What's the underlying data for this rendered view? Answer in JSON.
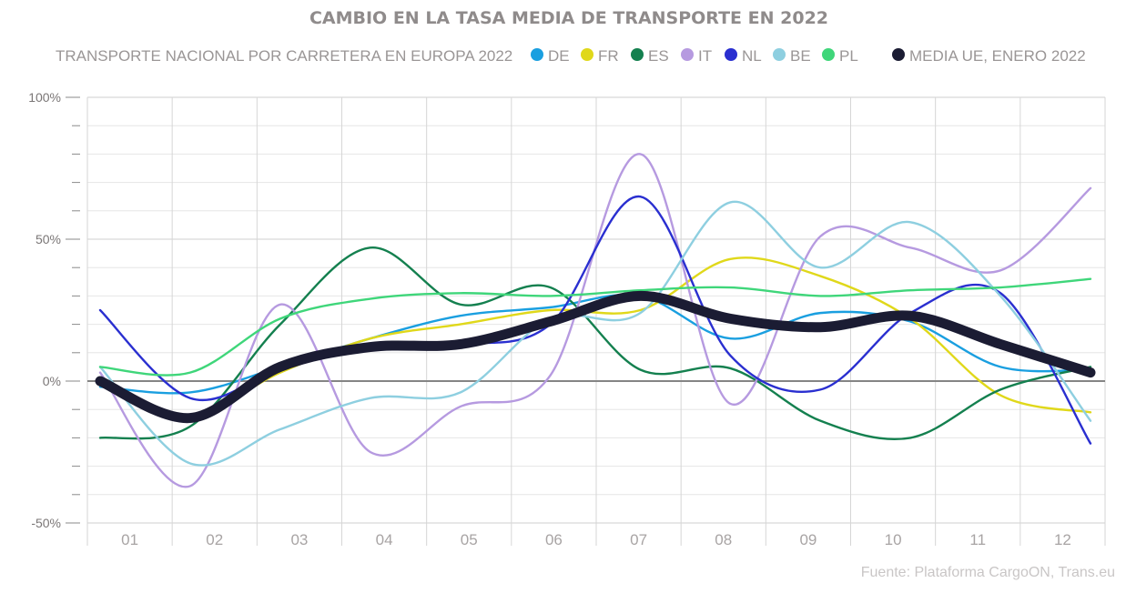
{
  "chart_data": {
    "type": "line",
    "title": "CAMBIO EN LA TASA MEDIA DE TRANSPORTE EN 2022",
    "subtitle": "TRANSPORTE NACIONAL POR CARRETERA EN EUROPA 2022",
    "source": "Fuente: Plataforma CargoON, Trans.eu",
    "categories": [
      "01",
      "02",
      "03",
      "04",
      "05",
      "06",
      "07",
      "08",
      "09",
      "10",
      "11",
      "12"
    ],
    "ylim": [
      -50,
      100
    ],
    "y_ticks": [
      -50,
      -40,
      -30,
      -20,
      -10,
      0,
      10,
      20,
      30,
      40,
      50,
      60,
      70,
      80,
      90,
      100
    ],
    "y_tick_labels": {
      "100": "100%",
      "50": "50%",
      "0": "0%",
      "-50": "-50%"
    },
    "grid": true,
    "smooth": true,
    "legend_position": "top",
    "series": [
      {
        "name": "DE",
        "color": "#1a9fe0",
        "values": [
          -2,
          -4,
          5,
          15,
          23,
          26,
          30,
          15,
          24,
          21,
          5,
          4
        ]
      },
      {
        "name": "FR",
        "color": "#e0d81a",
        "values": [
          -1,
          -12,
          3,
          15,
          20,
          25,
          25,
          43,
          37,
          22,
          -5,
          -11
        ]
      },
      {
        "name": "ES",
        "color": "#14804f",
        "values": [
          -20,
          -16,
          20,
          47,
          27,
          33,
          4,
          4.5,
          -14,
          -20,
          -3,
          5
        ]
      },
      {
        "name": "IT",
        "color": "#b69ae0",
        "values": [
          3,
          -37,
          27,
          -25,
          -9,
          2,
          80,
          -8,
          51,
          47,
          39,
          68
        ]
      },
      {
        "name": "NL",
        "color": "#2a2fd0",
        "values": [
          25,
          -6,
          4,
          12,
          13,
          20,
          65,
          9,
          -3,
          24,
          31,
          -22
        ]
      },
      {
        "name": "BE",
        "color": "#8ecfe0",
        "values": [
          5,
          -29,
          -17,
          -6,
          -4,
          22,
          24,
          63,
          40,
          56,
          30,
          -14
        ]
      },
      {
        "name": "PL",
        "color": "#3fd67a",
        "values": [
          5,
          3,
          22,
          29,
          31,
          30,
          32,
          33,
          30,
          32,
          33,
          36
        ]
      },
      {
        "name": "MEDIA UE, ENERO 2022",
        "color": "#1b1c33",
        "values": [
          0,
          -13,
          5,
          12,
          13,
          21,
          30,
          22,
          19,
          23,
          13,
          3
        ]
      }
    ]
  }
}
